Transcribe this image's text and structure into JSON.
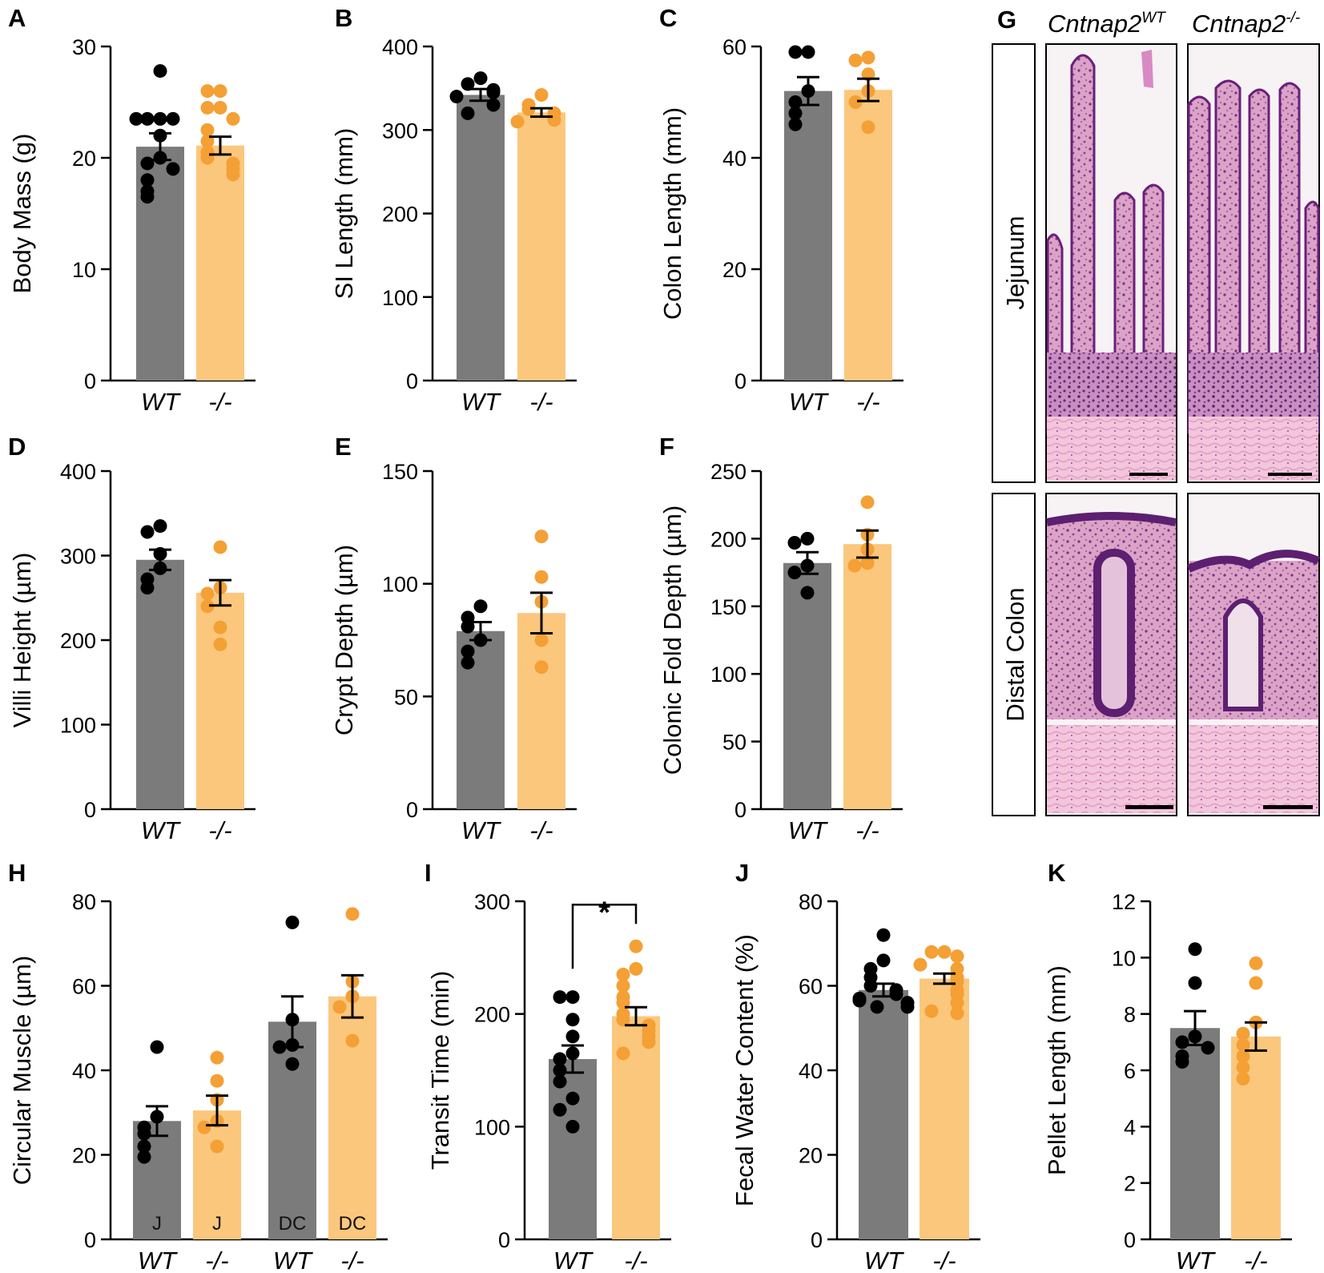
{
  "figure": {
    "colors": {
      "wt_bar": "#7b7b7b",
      "ko_bar": "#fbc77d",
      "wt_dot": "#000000",
      "ko_dot": "#f4a035",
      "axis": "#000000"
    },
    "panel_g": {
      "letter": "G",
      "col_headers": [
        {
          "base": "Cntnap2",
          "sup": "WT"
        },
        {
          "base": "Cntnap2",
          "sup": "-/-"
        }
      ],
      "row_labels": [
        "Jejunum",
        "Distal Colon"
      ]
    }
  },
  "chart_data": [
    {
      "id": "A",
      "letter": "A",
      "type": "bar",
      "ylabel": "Body Mass (g)",
      "ylim": [
        0,
        30
      ],
      "yticks": [
        "0",
        "10",
        "20",
        "30"
      ],
      "categories": [
        "WT",
        "-/-"
      ],
      "series": [
        {
          "name": "WT",
          "mean": 21.0,
          "sem": 1.2,
          "points": [
            27.8,
            23.5,
            23.5,
            23.5,
            23.5,
            22.0,
            20.0,
            19.5,
            19.0,
            18.0,
            17.0,
            16.5
          ]
        },
        {
          "name": "-/-",
          "mean": 21.1,
          "sem": 0.8,
          "points": [
            26.0,
            26.0,
            24.5,
            24.5,
            23.5,
            22.5,
            21.5,
            20.5,
            20.0,
            19.5,
            19.0,
            18.5
          ]
        }
      ],
      "bar_labels": [],
      "significance": null
    },
    {
      "id": "B",
      "letter": "B",
      "type": "bar",
      "ylabel": "SI Length (mm)",
      "ylim": [
        0,
        400
      ],
      "yticks": [
        "0",
        "100",
        "200",
        "300",
        "400"
      ],
      "categories": [
        "WT",
        "-/-"
      ],
      "series": [
        {
          "name": "WT",
          "mean": 342,
          "sem": 7,
          "points": [
            362,
            355,
            348,
            345,
            340,
            330,
            320
          ]
        },
        {
          "name": "-/-",
          "mean": 321,
          "sem": 5,
          "points": [
            342,
            330,
            325,
            320,
            312,
            310
          ]
        }
      ],
      "bar_labels": [],
      "significance": null
    },
    {
      "id": "C",
      "letter": "C",
      "type": "bar",
      "ylabel": "Colon Length (mm)",
      "ylim": [
        0,
        60
      ],
      "yticks": [
        "0",
        "20",
        "40",
        "60"
      ],
      "categories": [
        "WT",
        "-/-"
      ],
      "series": [
        {
          "name": "WT",
          "mean": 52.0,
          "sem": 2.5,
          "points": [
            59.0,
            59.0,
            52.0,
            50.0,
            48.0,
            46.0
          ]
        },
        {
          "name": "-/-",
          "mean": 52.2,
          "sem": 2.0,
          "points": [
            58.0,
            57.5,
            55.0,
            52.0,
            50.0,
            45.5
          ]
        }
      ],
      "bar_labels": [],
      "significance": null
    },
    {
      "id": "D",
      "letter": "D",
      "type": "bar",
      "ylabel": "Villi Height (µm)",
      "ylim": [
        0,
        400
      ],
      "yticks": [
        "0",
        "100",
        "200",
        "300",
        "400"
      ],
      "categories": [
        "WT",
        "-/-"
      ],
      "series": [
        {
          "name": "WT",
          "mean": 295,
          "sem": 12,
          "points": [
            335,
            328,
            302,
            285,
            272,
            262
          ]
        },
        {
          "name": "-/-",
          "mean": 256,
          "sem": 15,
          "points": [
            310,
            262,
            255,
            240,
            215,
            195
          ]
        }
      ],
      "bar_labels": [],
      "significance": null
    },
    {
      "id": "E",
      "letter": "E",
      "type": "bar",
      "ylabel": "Crypt Depth (µm)",
      "ylim": [
        0,
        150
      ],
      "yticks": [
        "0",
        "50",
        "100",
        "150"
      ],
      "categories": [
        "WT",
        "-/-"
      ],
      "series": [
        {
          "name": "WT",
          "mean": 79,
          "sem": 4,
          "points": [
            90,
            85,
            81,
            75,
            70,
            65
          ]
        },
        {
          "name": "-/-",
          "mean": 87,
          "sem": 9,
          "points": [
            121,
            103,
            92,
            75,
            63
          ]
        }
      ],
      "bar_labels": [],
      "significance": null
    },
    {
      "id": "F",
      "letter": "F",
      "type": "bar",
      "ylabel": "Colonic Fold Depth (µm)",
      "ylim": [
        0,
        250
      ],
      "yticks": [
        "0",
        "50",
        "100",
        "150",
        "200",
        "250"
      ],
      "categories": [
        "WT",
        "-/-"
      ],
      "series": [
        {
          "name": "WT",
          "mean": 182,
          "sem": 8,
          "points": [
            200,
            197,
            180,
            175,
            160
          ]
        },
        {
          "name": "-/-",
          "mean": 196,
          "sem": 10,
          "points": [
            227,
            203,
            192,
            182,
            180
          ]
        }
      ],
      "bar_labels": [],
      "significance": null
    },
    {
      "id": "H",
      "letter": "H",
      "type": "bar",
      "ylabel": "Circular Muscle (µm)",
      "ylim": [
        0,
        80
      ],
      "yticks": [
        "0",
        "20",
        "40",
        "60",
        "80"
      ],
      "categories": [
        "WT",
        "-/-",
        "WT",
        "-/-"
      ],
      "series": [
        {
          "name": "WT",
          "mean": 28.0,
          "sem": 3.5,
          "points": [
            45.5,
            29.0,
            26.5,
            25.0,
            22.0,
            19.5
          ]
        },
        {
          "name": "-/-",
          "mean": 30.5,
          "sem": 3.5,
          "points": [
            43.0,
            37.5,
            33.0,
            28.0,
            26.5,
            22.0
          ]
        },
        {
          "name": "WT",
          "mean": 51.5,
          "sem": 6.0,
          "points": [
            75.0,
            52.0,
            46.0,
            45.5,
            41.5
          ]
        },
        {
          "name": "-/-",
          "mean": 57.5,
          "sem": 5.0,
          "points": [
            77.0,
            61.0,
            57.5,
            55.0,
            47.0
          ]
        }
      ],
      "bar_labels": [
        "J",
        "J",
        "DC",
        "DC"
      ],
      "significance": null
    },
    {
      "id": "I",
      "letter": "I",
      "type": "bar",
      "ylabel": "Transit Time (min)",
      "ylim": [
        0,
        300
      ],
      "yticks": [
        "0",
        "100",
        "200",
        "300"
      ],
      "categories": [
        "WT",
        "-/-"
      ],
      "series": [
        {
          "name": "WT",
          "mean": 160,
          "sem": 12,
          "points": [
            215,
            215,
            195,
            180,
            165,
            160,
            150,
            140,
            125,
            115,
            100
          ]
        },
        {
          "name": "-/-",
          "mean": 198,
          "sem": 8,
          "points": [
            260,
            240,
            235,
            225,
            215,
            210,
            200,
            195,
            190,
            185,
            180,
            175,
            165
          ]
        }
      ],
      "bar_labels": [],
      "significance": "*"
    },
    {
      "id": "J",
      "letter": "J",
      "type": "bar",
      "ylabel": "Fecal Water Content (%)",
      "ylim": [
        0,
        80
      ],
      "yticks": [
        "0",
        "20",
        "40",
        "60",
        "80"
      ],
      "categories": [
        "WT",
        "-/-"
      ],
      "series": [
        {
          "name": "WT",
          "mean": 59.0,
          "sem": 1.5,
          "points": [
            72.0,
            66.0,
            64.0,
            62.0,
            60.0,
            59.0,
            58.0,
            57.0,
            56.5,
            56.0,
            55.0,
            55.0
          ]
        },
        {
          "name": "-/-",
          "mean": 61.7,
          "sem": 1.2,
          "points": [
            68.0,
            68.0,
            67.0,
            65.0,
            64.0,
            62.0,
            61.0,
            59.0,
            58.0,
            56.0,
            54.0,
            53.5
          ]
        }
      ],
      "bar_labels": [],
      "significance": null
    },
    {
      "id": "K",
      "letter": "K",
      "type": "bar",
      "ylabel": "Pellet Length (mm)",
      "ylim": [
        0,
        12
      ],
      "yticks": [
        "0",
        "2",
        "4",
        "6",
        "8",
        "10",
        "12"
      ],
      "categories": [
        "WT",
        "-/-"
      ],
      "series": [
        {
          "name": "WT",
          "mean": 7.5,
          "sem": 0.6,
          "points": [
            10.3,
            9.1,
            7.2,
            7.0,
            6.8,
            6.5,
            6.3
          ]
        },
        {
          "name": "-/-",
          "mean": 7.2,
          "sem": 0.5,
          "points": [
            9.8,
            9.1,
            7.7,
            7.3,
            6.9,
            6.5,
            6.1,
            5.7
          ]
        }
      ],
      "bar_labels": [],
      "significance": null
    }
  ]
}
